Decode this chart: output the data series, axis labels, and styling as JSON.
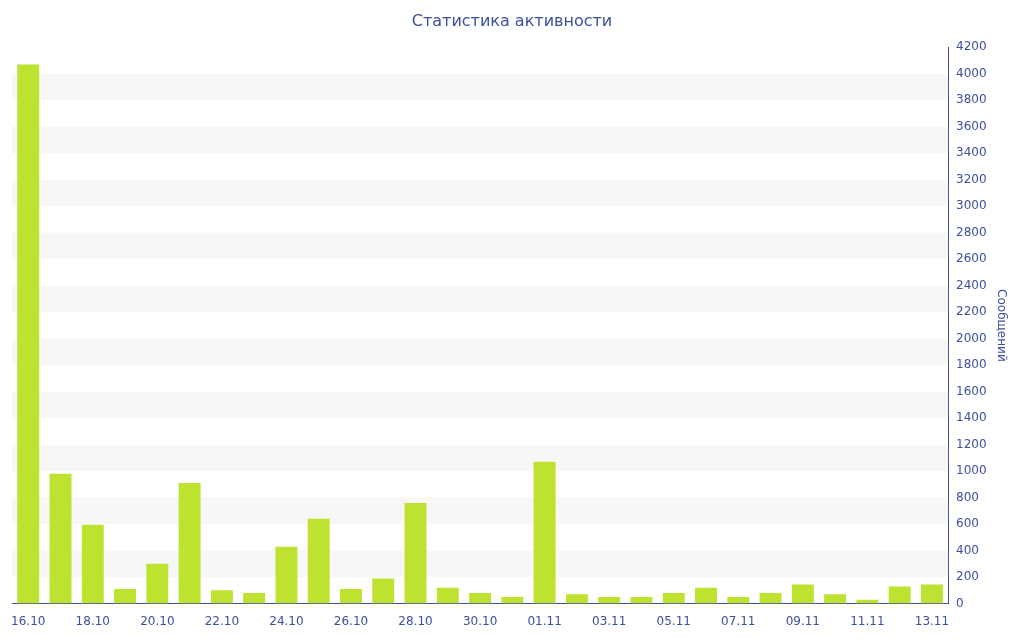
{
  "chart_data": {
    "type": "bar",
    "title": "Статистика активности",
    "ylabel": "Сообщений",
    "categories": [
      "16.10",
      null,
      "18.10",
      null,
      "20.10",
      null,
      "22.10",
      null,
      "24.10",
      null,
      "26.10",
      null,
      "28.10",
      null,
      "30.10",
      null,
      "01.11",
      null,
      "03.11",
      null,
      "05.11",
      null,
      "07.11",
      null,
      "09.11",
      null,
      "11.11",
      null,
      "13.11"
    ],
    "values": [
      4070,
      980,
      595,
      110,
      300,
      910,
      100,
      80,
      430,
      640,
      110,
      190,
      760,
      120,
      80,
      50,
      1070,
      70,
      50,
      50,
      80,
      120,
      50,
      80,
      145,
      70,
      30,
      130,
      145
    ],
    "color": "#bde22f",
    "ylim": [
      0,
      4200
    ],
    "yticks": [
      0,
      200,
      400,
      600,
      800,
      1000,
      1200,
      1400,
      1600,
      1800,
      2000,
      2200,
      2400,
      2600,
      2800,
      3000,
      3200,
      3400,
      3600,
      3800,
      4000,
      4200
    ],
    "bands": [
      {
        "axis": "y",
        "from": 200,
        "to": 400,
        "color": "#f7f7f7"
      },
      {
        "axis": "y",
        "from": 600,
        "to": 800,
        "color": "#f7f7f7"
      },
      {
        "axis": "y",
        "from": 1000,
        "to": 1200,
        "color": "#f7f7f7"
      },
      {
        "axis": "y",
        "from": 1400,
        "to": 1600,
        "color": "#f7f7f7"
      },
      {
        "axis": "y",
        "from": 1800,
        "to": 2000,
        "color": "#f7f7f7"
      },
      {
        "axis": "y",
        "from": 2200,
        "to": 2400,
        "color": "#f7f7f7"
      },
      {
        "axis": "y",
        "from": 2600,
        "to": 2800,
        "color": "#f7f7f7"
      },
      {
        "axis": "y",
        "from": 3000,
        "to": 3200,
        "color": "#f7f7f7"
      },
      {
        "axis": "y",
        "from": 3400,
        "to": 3600,
        "color": "#f7f7f7"
      },
      {
        "axis": "y",
        "from": 3800,
        "to": 4000,
        "color": "#f7f7f7"
      }
    ],
    "legend": false
  }
}
